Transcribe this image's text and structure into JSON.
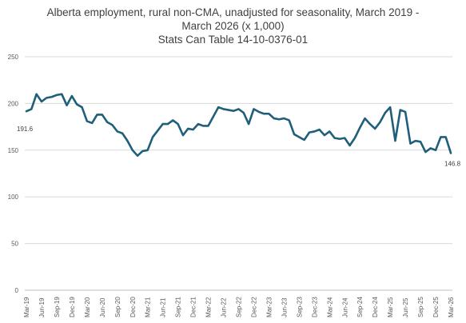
{
  "chart_data": {
    "type": "line",
    "title_lines": [
      "Alberta employment, rural non-CMA, unadjusted for seasonality, March 2019 -",
      "March 2026 (x 1,000)",
      "Stats Can Table 14-10-0376-01"
    ],
    "xlabel": "",
    "ylabel": "",
    "ylim": [
      0,
      250
    ],
    "yticks": [
      0,
      50,
      100,
      150,
      200,
      250
    ],
    "grid": true,
    "legend": "none",
    "line_color": "#1f5f7a",
    "x_tick_labels": [
      "Mar-19",
      "Jun-19",
      "Sep-19",
      "Dec-19",
      "Mar-20",
      "Jun-20",
      "Sep-20",
      "Dec-20",
      "Mar-21",
      "Jun-21",
      "Sep-21",
      "Dec-21",
      "Mar-22",
      "Jun-22",
      "Sep-22",
      "Dec-22",
      "Mar-23",
      "Jun-23",
      "Sep-23",
      "Dec-23",
      "Mar-24",
      "Jun-24",
      "Sep-24",
      "Dec-24",
      "Mar-25",
      "Jun-25",
      "Sep-25",
      "Dec-25",
      "Mar-26"
    ],
    "series": [
      {
        "values": [
          191.6,
          194,
          210,
          202,
          206,
          207,
          209,
          210,
          198,
          208,
          199,
          196,
          181,
          179,
          188,
          188,
          180,
          177,
          170,
          168,
          160,
          150,
          144,
          149,
          150,
          164,
          171,
          178,
          178,
          182,
          178,
          166,
          173,
          172,
          178,
          176,
          176,
          186,
          196,
          194,
          193,
          192,
          194,
          190,
          178,
          194,
          191,
          189,
          189,
          184,
          183,
          184,
          182,
          167,
          164,
          161,
          169,
          170,
          172,
          166,
          170,
          163,
          162,
          163,
          155,
          163,
          174,
          184,
          178,
          173,
          180,
          190,
          196,
          160,
          193,
          191,
          157,
          160,
          159,
          148,
          152,
          150,
          164,
          164,
          146.8
        ]
      }
    ],
    "annotations": [
      {
        "text": "191.6",
        "x": "Mar-19",
        "y": 191.6
      },
      {
        "text": "146.8",
        "x": "Mar-26",
        "y": 146.8
      }
    ]
  }
}
